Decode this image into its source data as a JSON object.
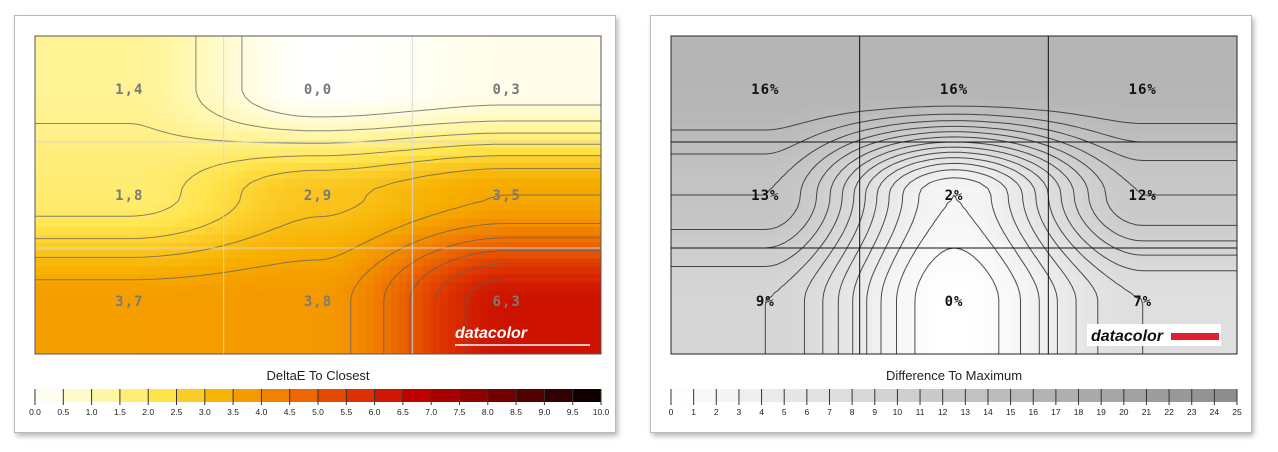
{
  "chart_data": [
    {
      "type": "heatmap",
      "title": "DeltaE To Closest",
      "rows": 3,
      "cols": 3,
      "values": [
        [
          1.4,
          0.0,
          0.3
        ],
        [
          1.8,
          2.9,
          3.5
        ],
        [
          3.7,
          3.8,
          6.3
        ]
      ],
      "cell_labels": [
        [
          "1,4",
          "0,0",
          "0,3"
        ],
        [
          "1,8",
          "2,9",
          "3,5"
        ],
        [
          "3,7",
          "3,8",
          "6,3"
        ]
      ],
      "colorbar_ticks": [
        "0.0",
        "0.5",
        "1.0",
        "1.5",
        "2.0",
        "2.5",
        "3.0",
        "3.5",
        "4.0",
        "4.5",
        "5.0",
        "5.5",
        "6.0",
        "6.5",
        "7.0",
        "7.5",
        "8.0",
        "8.5",
        "9.0",
        "9.5",
        "10.0"
      ],
      "range": [
        0,
        10
      ],
      "color_scale": [
        "#ffffff",
        "#fff8b0",
        "#ffe44a",
        "#f7b000",
        "#f07800",
        "#e03a00",
        "#c40000",
        "#8e0000",
        "#4a0000",
        "#000000"
      ],
      "grid": true,
      "watermark": "datacolor"
    },
    {
      "type": "heatmap",
      "title": "Difference To Maximum",
      "rows": 3,
      "cols": 3,
      "values": [
        [
          16,
          16,
          16
        ],
        [
          13,
          2,
          12
        ],
        [
          9,
          0,
          7
        ]
      ],
      "cell_labels": [
        [
          "16%",
          "16%",
          "16%"
        ],
        [
          "13%",
          "2%",
          "12%"
        ],
        [
          "9%",
          "0%",
          "7%"
        ]
      ],
      "colorbar_ticks": [
        "0",
        "1",
        "2",
        "3",
        "4",
        "5",
        "6",
        "7",
        "8",
        "9",
        "10",
        "11",
        "12",
        "13",
        "14",
        "15",
        "16",
        "17",
        "18",
        "19",
        "20",
        "21",
        "22",
        "23",
        "24",
        "25"
      ],
      "range": [
        0,
        25
      ],
      "color_scale": [
        "#ffffff",
        "#8c8c8c"
      ],
      "grid": true,
      "watermark": "datacolor"
    }
  ]
}
